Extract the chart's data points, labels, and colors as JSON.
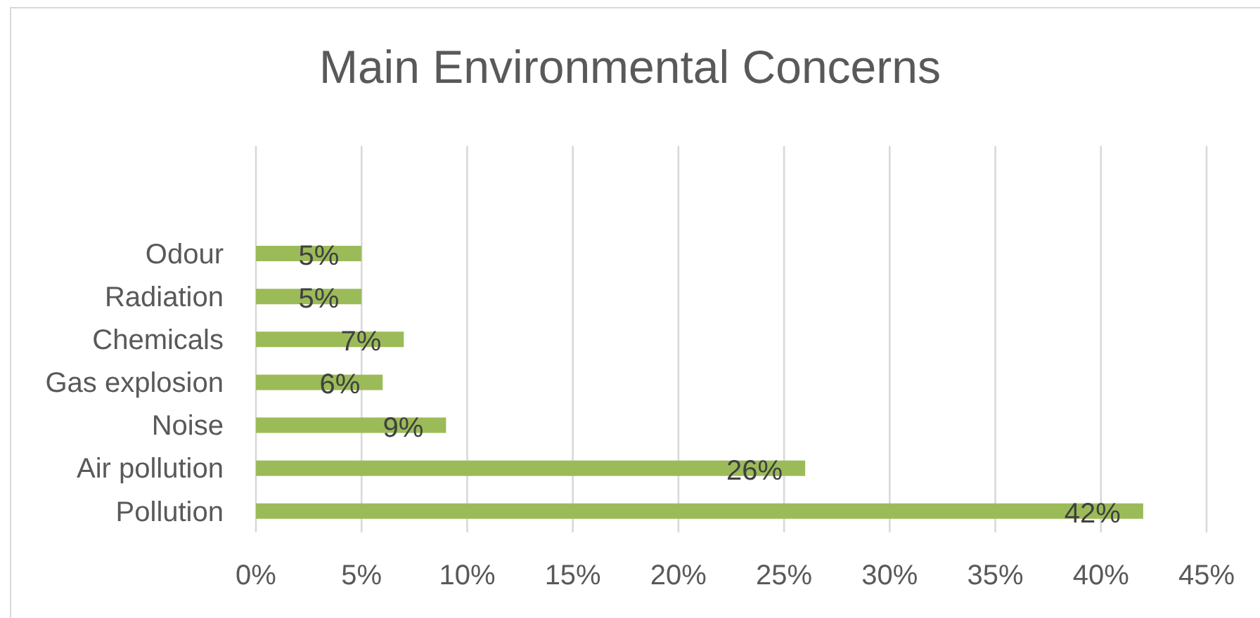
{
  "chart_data": {
    "type": "bar",
    "orientation": "horizontal",
    "title": "Main Environmental Concerns",
    "categories": [
      "Odour",
      "Radiation",
      "Chemicals",
      "Gas explosion",
      "Noise",
      "Air pollution",
      "Pollution"
    ],
    "values": [
      5,
      5,
      7,
      6,
      9,
      26,
      42
    ],
    "color": "#9bbb59",
    "value_labels": [
      "5%",
      "5%",
      "7%",
      "6%",
      "9%",
      "26%",
      "42%"
    ],
    "xlim": [
      0,
      45
    ],
    "xticks": [
      {
        "value": 0,
        "label": "0%"
      },
      {
        "value": 5,
        "label": "5%"
      },
      {
        "value": 10,
        "label": "10%"
      },
      {
        "value": 15,
        "label": "15%"
      },
      {
        "value": 20,
        "label": "20%"
      },
      {
        "value": 25,
        "label": "25%"
      },
      {
        "value": 30,
        "label": "30%"
      },
      {
        "value": 35,
        "label": "35%"
      },
      {
        "value": 40,
        "label": "40%"
      },
      {
        "value": 45,
        "label": "45%"
      }
    ],
    "grid": "x"
  }
}
